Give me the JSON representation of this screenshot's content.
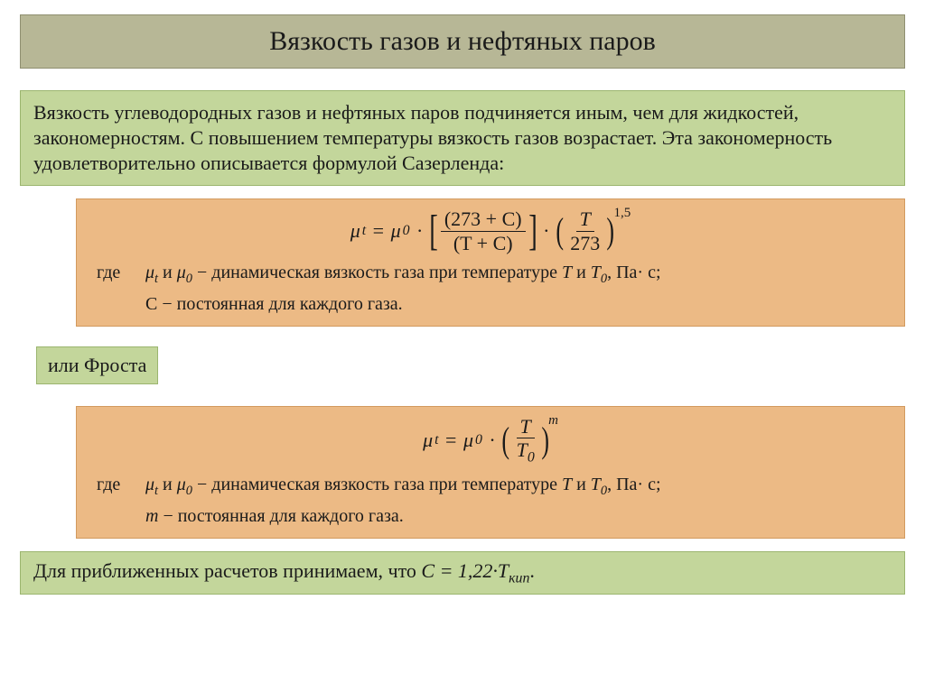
{
  "colors": {
    "title_bg": "#b7b796",
    "title_border": "#8f8f70",
    "green_bg": "#c3d69b",
    "green_border": "#9bb56f",
    "orange_bg": "#ecba85",
    "orange_border": "#d29a5e",
    "page_bg": "#ffffff",
    "text": "#1a1a1a"
  },
  "fonts": {
    "family": "Times New Roman",
    "title_size_pt": 30,
    "body_size_pt": 22,
    "box_size_pt": 20
  },
  "title": "Вязкость газов и нефтяных паров",
  "intro": "Вязкость углеводородных газов и нефтяных паров подчиняется иным, чем для жидкостей, закономерностям. С повышением температуры вязкость газов возрастает. Эта закономерность удовлетворительно описывается формулой Сазерленда:",
  "sutherland": {
    "formula_plain": "μ_t = μ_0 · [(273 + C)/(T + C)] · (T/273)^1,5",
    "lhs": "μ",
    "lhs_sub": "t",
    "mu0": "μ",
    "mu0_sub": "0",
    "frac1_num": "(273 + C)",
    "frac1_den": "(T + C)",
    "frac2_num": "T",
    "frac2_den": "273",
    "exponent": "1,5",
    "where_label": "где",
    "where_line1": "μ_t и μ_0 − динамическая вязкость газа при температуре T и T_0, Па· с;",
    "where_line1_html_pre": " и ",
    "where_line1_tail": " − динамическая вязкость газа при температуре ",
    "where_line1_T": "T",
    "where_line1_and": " и ",
    "where_line1_T0": "T",
    "where_line1_T0_sub": "0",
    "where_line1_units": ", Па· с;",
    "where_line2_sym": "С",
    "where_line2_text": " − постоянная для каждого газа."
  },
  "frost_label": "или Фроста",
  "frost": {
    "formula_plain": "μ_t = μ_0 · (T / T_0)^m",
    "frac_num": "T",
    "frac_den_T": "T",
    "frac_den_sub": "0",
    "exponent": "m",
    "where_label": "где",
    "where_line1_tail": " − динамическая вязкость газа при температуре ",
    "where_line1_T": "T",
    "where_line1_and": " и ",
    "where_line1_T0": "T",
    "where_line1_T0_sub": "0",
    "where_line1_units": ", Па· с;",
    "where_line2_sym": "m",
    "where_line2_text": " − постоянная для каждого газа."
  },
  "footnote_pre": "Для приближенных расчетов принимаем, что ",
  "footnote_eq_lhs": "С = 1,22·T",
  "footnote_eq_sub": "кип",
  "footnote_post": "."
}
